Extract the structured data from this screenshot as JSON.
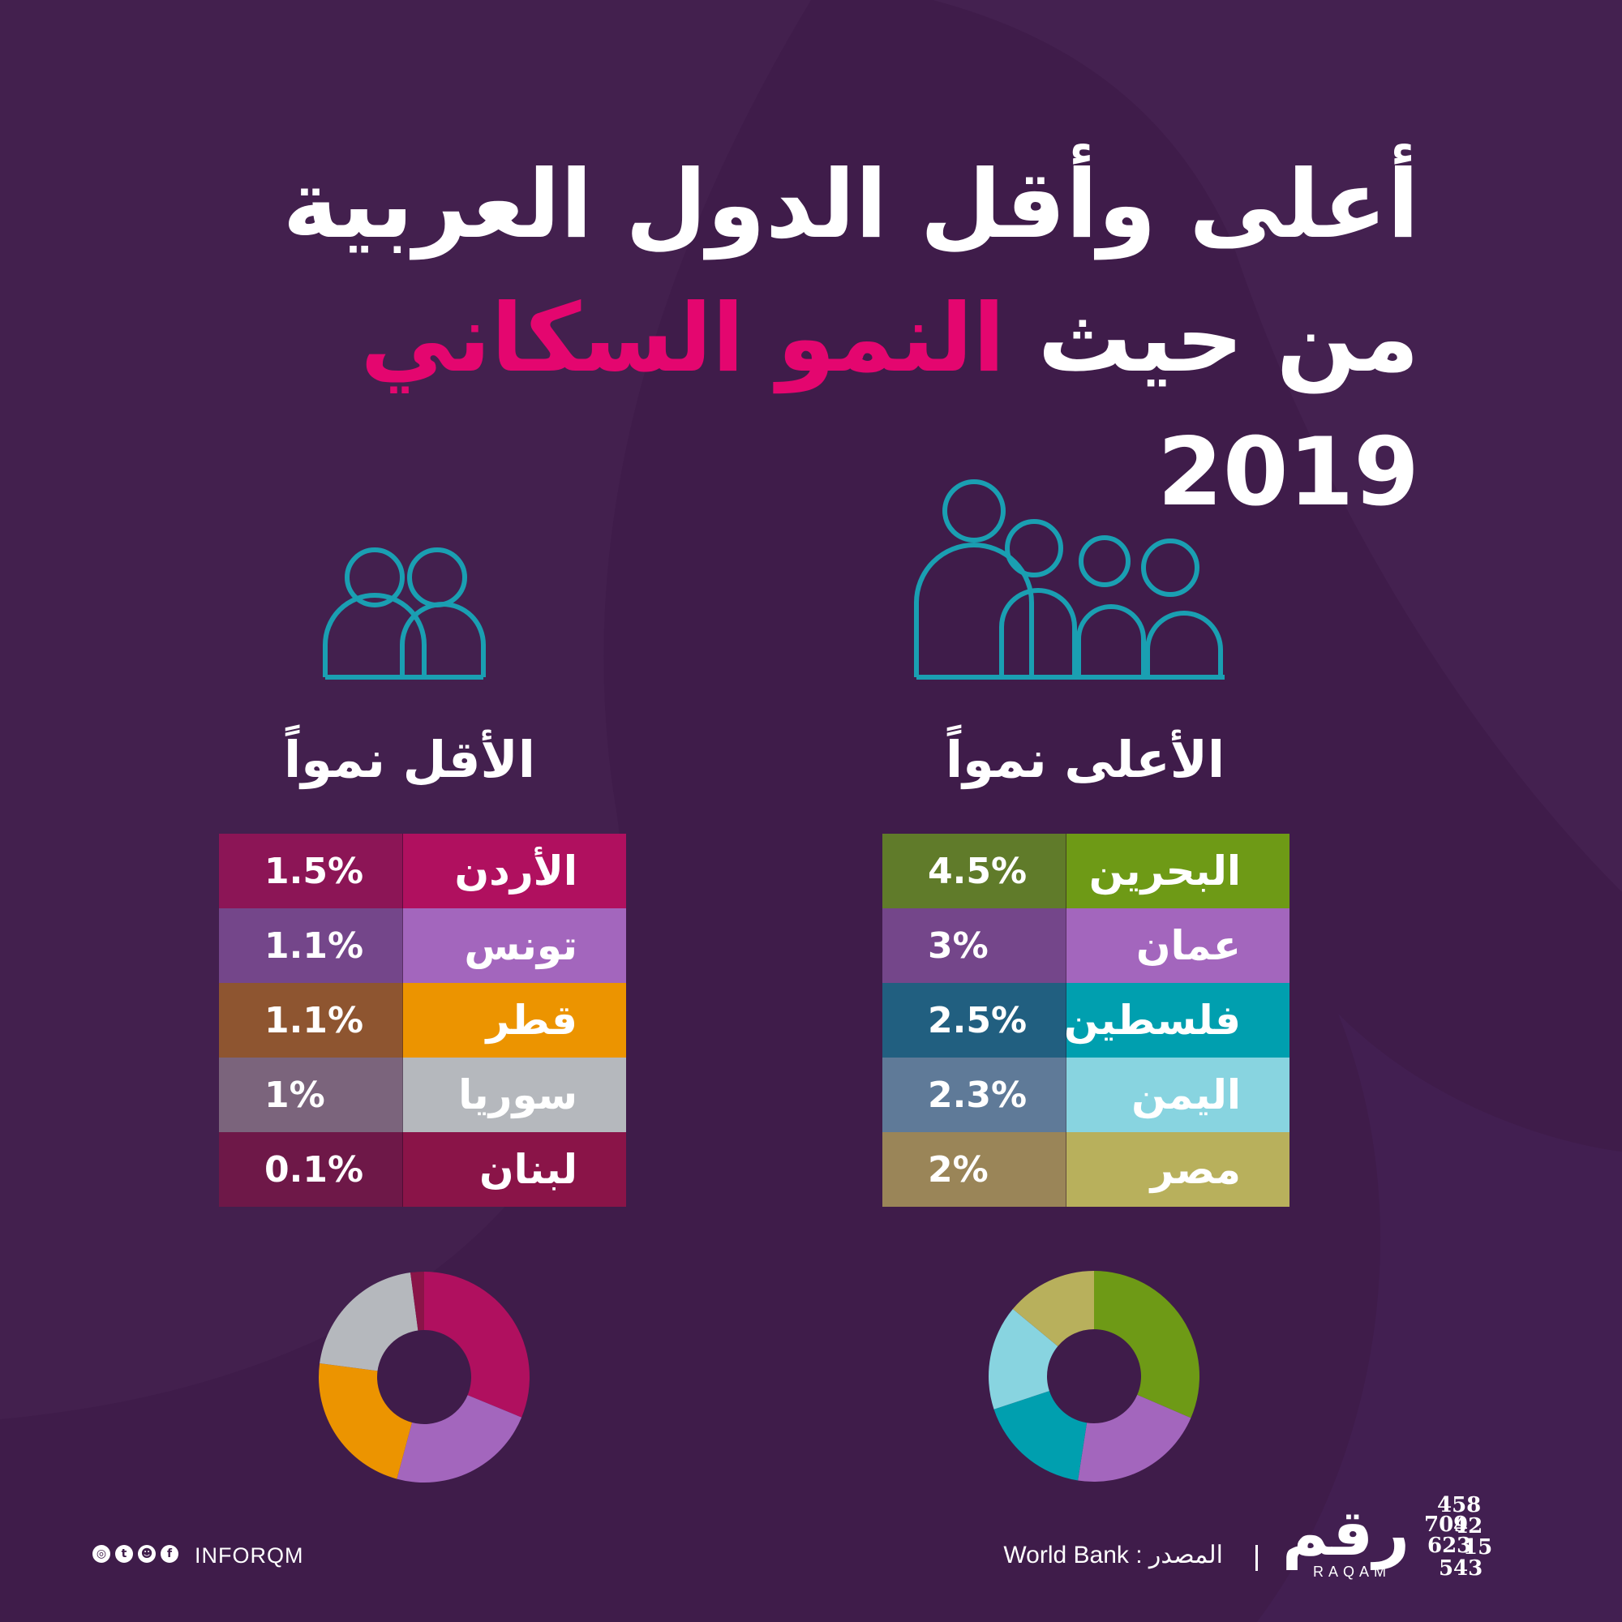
{
  "title": {
    "line1": "أعلى وأقل الدول العربية",
    "line2_prefix": "من حيث",
    "line2_accent": "النمو السكاني",
    "line2_year": "2019"
  },
  "colors": {
    "background": "#3f1c4a",
    "accent": "#e4066f",
    "icon": "#1a9fb2"
  },
  "footer": {
    "source_label": "المصدر :",
    "source_value": "World Bank",
    "handle": "INFORQM",
    "brand_ar": "رقم",
    "brand_en": "RAQAM",
    "brand_mark_digits": "45809423621545",
    "social_icons": [
      "instagram-icon",
      "twitter-icon",
      "snapchat-icon",
      "facebook-icon"
    ]
  },
  "chart_data": [
    {
      "type": "table",
      "title": "الأعلى نمواً",
      "rows": [
        {
          "country": "البحرين",
          "value": 4.5,
          "label": "4.5%",
          "color": "#6e9a16",
          "value_color": "#607b2a"
        },
        {
          "country": "عمان",
          "value": 3,
          "label": "3%",
          "color": "#a366bd",
          "value_color": "#74468a"
        },
        {
          "country": "فلسطين",
          "value": 2.5,
          "label": "2.5%",
          "color": "#009faf",
          "value_color": "#215f80"
        },
        {
          "country": "اليمن",
          "value": 2.3,
          "label": "2.3%",
          "color": "#88d4e0",
          "value_color": "#5f7a98"
        },
        {
          "country": "مصر",
          "value": 2,
          "label": "2%",
          "color": "#b8b05c",
          "value_color": "#9a8558"
        }
      ],
      "donut": {
        "type": "pie",
        "values": [
          4.5,
          3,
          2.5,
          2.3,
          2
        ],
        "colors": [
          "#6e9a16",
          "#a366bd",
          "#009faf",
          "#88d4e0",
          "#b8b05c"
        ]
      }
    },
    {
      "type": "table",
      "title": "الأقل نمواً",
      "rows": [
        {
          "country": "الأردن",
          "value": 1.5,
          "label": "1.5%",
          "color": "#b0105f",
          "value_color": "#8c1556"
        },
        {
          "country": "تونس",
          "value": 1.1,
          "label": "1.1%",
          "color": "#a366bd",
          "value_color": "#74468a"
        },
        {
          "country": "قطر",
          "value": 1.1,
          "label": "1.1%",
          "color": "#ec9400",
          "value_color": "#8e5530"
        },
        {
          "country": "سوريا",
          "value": 1,
          "label": "1%",
          "color": "#b5b8bd",
          "value_color": "#7b647c"
        },
        {
          "country": "لبنان",
          "value": 0.1,
          "label": "0.1%",
          "color": "#8a1448",
          "value_color": "#6e1848"
        }
      ],
      "donut": {
        "type": "pie",
        "values": [
          1.5,
          1.1,
          1.1,
          1,
          0.1
        ],
        "colors": [
          "#b0105f",
          "#a366bd",
          "#ec9400",
          "#b5b8bd",
          "#8a1448"
        ]
      }
    }
  ]
}
